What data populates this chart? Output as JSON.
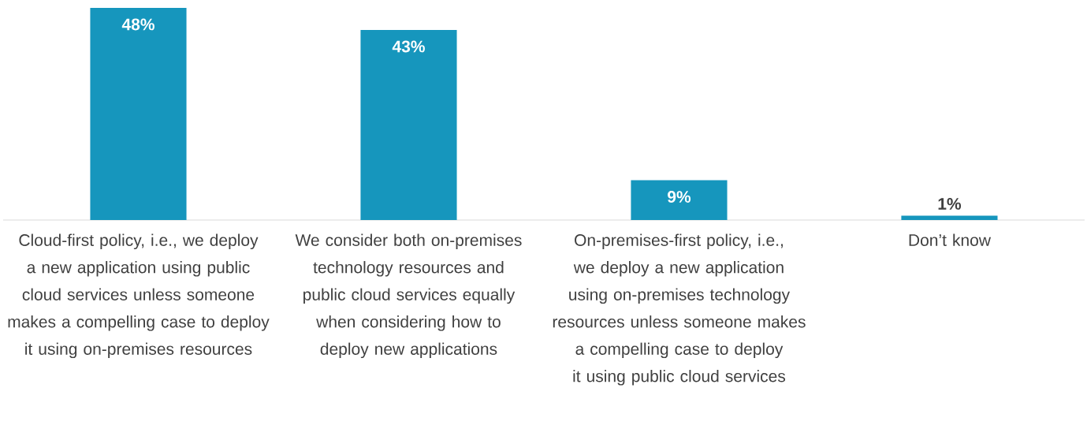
{
  "chart_data": {
    "type": "bar",
    "categories": [
      "Cloud-first policy, i.e., we deploy a new application using public cloud services unless someone makes a compelling case to deploy it using on-premises resources",
      "We consider both on-premises technology resources and public cloud services equally when considering how to deploy new applications",
      "On-premises-first policy, i.e., we deploy a new application using on-premises technology resources unless someone makes a compelling case to deploy it using public cloud services",
      "Don’t know"
    ],
    "values": [
      48,
      43,
      9,
      1
    ],
    "value_labels": [
      "48%",
      "43%",
      "9%",
      "1%"
    ],
    "color": "#1696bd"
  }
}
